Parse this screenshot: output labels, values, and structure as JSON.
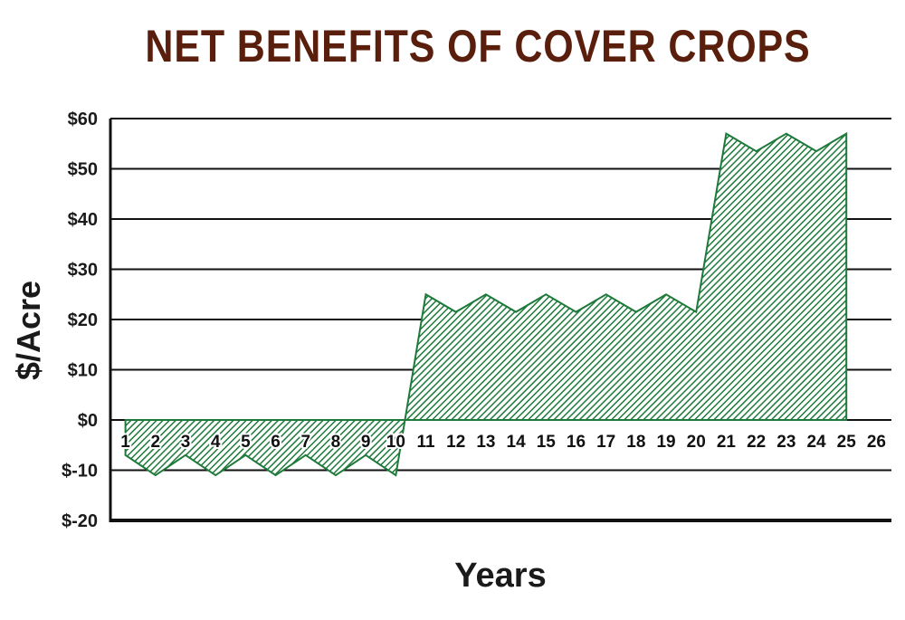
{
  "chart_data": {
    "type": "area",
    "title": "NET BENEFITS OF COVER CROPS",
    "xlabel": "Years",
    "ylabel": "$/Acre",
    "x_ticks": [
      "1",
      "2",
      "3",
      "4",
      "5",
      "6",
      "7",
      "8",
      "9",
      "10",
      "11",
      "12",
      "13",
      "14",
      "15",
      "16",
      "17",
      "18",
      "19",
      "20",
      "21",
      "22",
      "23",
      "24",
      "25",
      "26"
    ],
    "y_ticks": [
      {
        "value": 60,
        "label": "$60"
      },
      {
        "value": 50,
        "label": "$50"
      },
      {
        "value": 40,
        "label": "$40"
      },
      {
        "value": 30,
        "label": "$30"
      },
      {
        "value": 20,
        "label": "$20"
      },
      {
        "value": 10,
        "label": "$10"
      },
      {
        "value": 0,
        "label": "$0"
      },
      {
        "value": -10,
        "label": "$-10"
      },
      {
        "value": -20,
        "label": "$-20"
      }
    ],
    "ylim": [
      -20,
      60
    ],
    "xlim": [
      0.5,
      26.5
    ],
    "grid": true,
    "fill_color": "#1e7a3a",
    "series": [
      {
        "x": [
          1,
          2,
          3,
          4,
          5,
          6,
          7,
          8,
          9,
          10,
          11,
          12,
          13,
          14,
          15,
          16,
          17,
          18,
          19,
          20,
          21,
          22,
          23,
          24,
          25
        ],
        "values": [
          -7,
          -11,
          -7,
          -11,
          -7,
          -11,
          -7,
          -11,
          -7,
          -11,
          25,
          21.5,
          25,
          21.5,
          25,
          21.5,
          25,
          21.5,
          25,
          21.5,
          57,
          53.5,
          57,
          53.5,
          57
        ]
      }
    ]
  }
}
